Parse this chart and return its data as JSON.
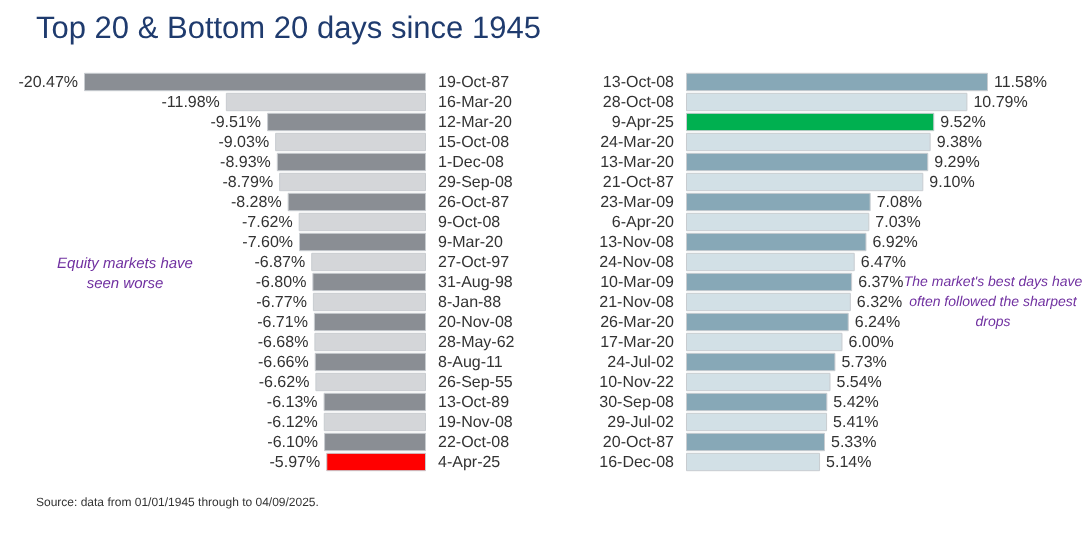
{
  "chart_data": [
    {
      "type": "bar",
      "orientation": "horizontal",
      "title": "Top 20 & Bottom 20 days since 1945",
      "categories": [
        "19-Oct-87",
        "16-Mar-20",
        "12-Mar-20",
        "15-Oct-08",
        "1-Dec-08",
        "29-Sep-08",
        "26-Oct-87",
        "9-Oct-08",
        "9-Mar-20",
        "27-Oct-97",
        "31-Aug-98",
        "8-Jan-88",
        "20-Nov-08",
        "28-May-62",
        "8-Aug-11",
        "26-Sep-55",
        "13-Oct-89",
        "19-Nov-08",
        "22-Oct-08",
        "4-Apr-25"
      ],
      "values": [
        -20.47,
        -11.98,
        -9.51,
        -9.03,
        -8.93,
        -8.79,
        -8.28,
        -7.62,
        -7.6,
        -6.87,
        -6.8,
        -6.77,
        -6.71,
        -6.68,
        -6.66,
        -6.62,
        -6.13,
        -6.12,
        -6.1,
        -5.97
      ],
      "value_labels": [
        "-20.47%",
        "-11.98%",
        "-9.51%",
        "-9.03%",
        "-8.93%",
        "-8.79%",
        "-8.28%",
        "-7.62%",
        "-7.60%",
        "-6.87%",
        "-6.80%",
        "-6.77%",
        "-6.71%",
        "-6.68%",
        "-6.66%",
        "-6.62%",
        "-6.13%",
        "-6.12%",
        "-6.10%",
        "-5.97%"
      ],
      "colors": [
        "#8a8e94",
        "#d4d6d9",
        "#8a8e94",
        "#d4d6d9",
        "#8a8e94",
        "#d4d6d9",
        "#8a8e94",
        "#d4d6d9",
        "#8a8e94",
        "#d4d6d9",
        "#8a8e94",
        "#d4d6d9",
        "#8a8e94",
        "#d4d6d9",
        "#8a8e94",
        "#d4d6d9",
        "#8a8e94",
        "#d4d6d9",
        "#8a8e94",
        "#ff0000"
      ],
      "annotations": [
        "Equity markets have seen worse",
        "Source: data from 01/01/1945 through to 04/09/2025."
      ]
    },
    {
      "type": "bar",
      "orientation": "horizontal",
      "categories": [
        "13-Oct-08",
        "28-Oct-08",
        "9-Apr-25",
        "24-Mar-20",
        "13-Mar-20",
        "21-Oct-87",
        "23-Mar-09",
        "6-Apr-20",
        "13-Nov-08",
        "24-Nov-08",
        "10-Mar-09",
        "21-Nov-08",
        "26-Mar-20",
        "17-Mar-20",
        "24-Jul-02",
        "10-Nov-22",
        "30-Sep-08",
        "29-Jul-02",
        "20-Oct-87",
        "16-Dec-08"
      ],
      "values": [
        11.58,
        10.79,
        9.52,
        9.38,
        9.29,
        9.1,
        7.08,
        7.03,
        6.92,
        6.47,
        6.37,
        6.32,
        6.24,
        6.0,
        5.73,
        5.54,
        5.42,
        5.41,
        5.33,
        5.14
      ],
      "value_labels": [
        "11.58%",
        "10.79%",
        "9.52%",
        "9.38%",
        "9.29%",
        "9.10%",
        "7.08%",
        "7.03%",
        "6.92%",
        "6.47%",
        "6.37%",
        "6.32%",
        "6.24%",
        "6.00%",
        "5.73%",
        "5.54%",
        "5.42%",
        "5.41%",
        "5.33%",
        "5.14%"
      ],
      "colors": [
        "#87a8b7",
        "#d2e0e6",
        "#00b050",
        "#d2e0e6",
        "#87a8b7",
        "#d2e0e6",
        "#87a8b7",
        "#d2e0e6",
        "#87a8b7",
        "#d2e0e6",
        "#87a8b7",
        "#d2e0e6",
        "#87a8b7",
        "#d2e0e6",
        "#87a8b7",
        "#d2e0e6",
        "#87a8b7",
        "#d2e0e6",
        "#87a8b7",
        "#d2e0e6"
      ],
      "annotations": [
        "The market's best days have often followed the sharpest drops"
      ]
    }
  ]
}
